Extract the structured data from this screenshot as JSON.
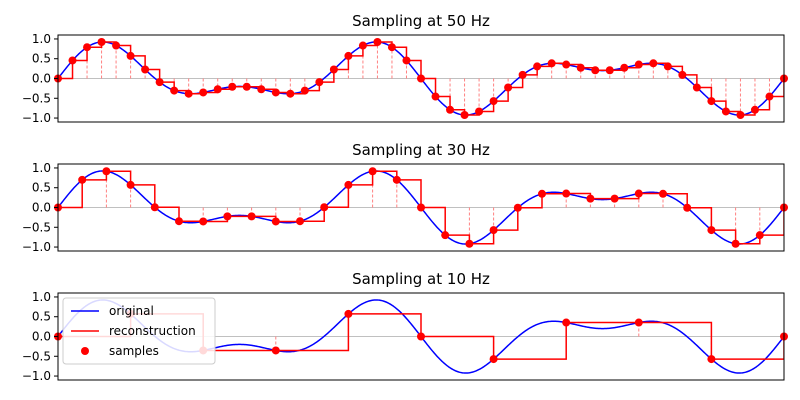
{
  "colors": {
    "original": "#0000ff",
    "reconstruction": "#ff0000",
    "samples": "#ff0000",
    "stems": "#ff8080",
    "baseline": "#c0c0c0",
    "axes": "#000000"
  },
  "legend": {
    "location": "upper-left of bottom panel",
    "entries": [
      {
        "label": "original",
        "marker": "line",
        "color": "#0000ff"
      },
      {
        "label": "reconstruction",
        "marker": "line",
        "color": "#ff0000"
      },
      {
        "label": "samples",
        "marker": "dot",
        "color": "#ff0000"
      }
    ]
  },
  "chart_data": [
    {
      "type": "line",
      "title": "Sampling at 50 Hz",
      "xlabel": "",
      "ylabel": "",
      "xlim": [
        0,
        1
      ],
      "ylim": [
        -1.1,
        1.1
      ],
      "yticks": [
        1.0,
        0.5,
        0.0,
        -0.5,
        -1.0
      ],
      "ytick_labels": [
        "1.0",
        "0.5",
        "0.0",
        "−0.5",
        "−1.0"
      ],
      "xticks_shown": false,
      "grid": false,
      "original_signal": {
        "description": "sum of sinusoids",
        "terms": [
          {
            "amplitude": 0.6,
            "frequency_hz": 3
          },
          {
            "amplitude": 0.4,
            "frequency_hz": 5
          }
        ]
      },
      "series": [
        {
          "name": "original",
          "style": "line"
        },
        {
          "name": "reconstruction",
          "style": "zero-order-hold steps"
        },
        {
          "name": "samples",
          "style": "markers with stems",
          "sample_rate_hz": 50,
          "t_start": 0,
          "t_end": 1
        }
      ]
    },
    {
      "type": "line",
      "title": "Sampling at 30 Hz",
      "xlabel": "",
      "ylabel": "",
      "xlim": [
        0,
        1
      ],
      "ylim": [
        -1.1,
        1.1
      ],
      "yticks": [
        1.0,
        0.5,
        0.0,
        -0.5,
        -1.0
      ],
      "ytick_labels": [
        "1.0",
        "0.5",
        "0.0",
        "−0.5",
        "−1.0"
      ],
      "xticks_shown": false,
      "grid": false,
      "original_signal": {
        "description": "sum of sinusoids",
        "terms": [
          {
            "amplitude": 0.6,
            "frequency_hz": 3
          },
          {
            "amplitude": 0.4,
            "frequency_hz": 5
          }
        ]
      },
      "series": [
        {
          "name": "original",
          "style": "line"
        },
        {
          "name": "reconstruction",
          "style": "zero-order-hold steps"
        },
        {
          "name": "samples",
          "style": "markers with stems",
          "sample_rate_hz": 30,
          "t_start": 0,
          "t_end": 1
        }
      ]
    },
    {
      "type": "line",
      "title": "Sampling at 10 Hz",
      "xlabel": "",
      "ylabel": "",
      "xlim": [
        0,
        1
      ],
      "ylim": [
        -1.1,
        1.1
      ],
      "yticks": [
        1.0,
        0.5,
        0.0,
        -0.5,
        -1.0
      ],
      "ytick_labels": [
        "1.0",
        "0.5",
        "0.0",
        "−0.5",
        "−1.0"
      ],
      "xticks_shown": false,
      "grid": false,
      "original_signal": {
        "description": "sum of sinusoids",
        "terms": [
          {
            "amplitude": 0.6,
            "frequency_hz": 3
          },
          {
            "amplitude": 0.4,
            "frequency_hz": 5
          }
        ]
      },
      "series": [
        {
          "name": "original",
          "style": "line"
        },
        {
          "name": "reconstruction",
          "style": "zero-order-hold steps"
        },
        {
          "name": "samples",
          "style": "markers with stems",
          "sample_rate_hz": 10,
          "t_start": 0,
          "t_end": 1
        }
      ]
    }
  ]
}
